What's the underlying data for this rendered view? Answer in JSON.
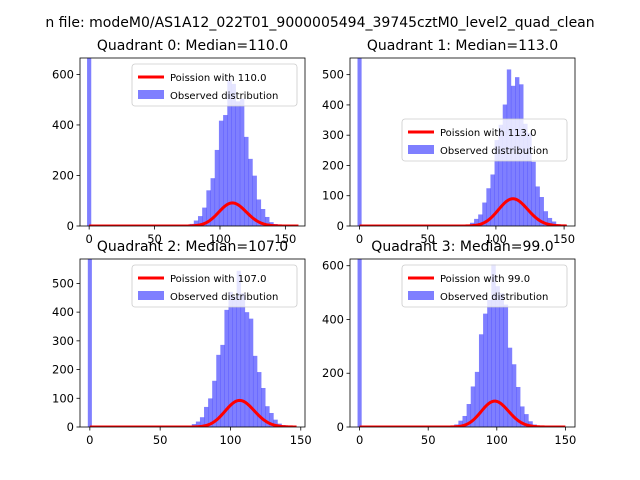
{
  "suptitle": "n file: modeM0/AS1A12_022T01_9000005494_39745cztM0_level2_quad_clean",
  "colors": {
    "hist": "#0000ff",
    "fit": "#ff0000",
    "axes": "#000000",
    "background": "#ffffff"
  },
  "chart_data": [
    {
      "type": "bar",
      "title": "Quadrant 0: Median=110.0",
      "xlim": [
        -7,
        165
      ],
      "ylim": [
        0,
        665
      ],
      "xticks": [
        0,
        50,
        100,
        150
      ],
      "xtick_labels": [
        "0",
        "50",
        "100",
        "150"
      ],
      "yticks": [
        0,
        200,
        400,
        600
      ],
      "ytick_labels": [
        "0",
        "200",
        "400",
        "600"
      ],
      "legend": {
        "position": "upper right",
        "entries": [
          "Poission with 110.0",
          "Observed distribution"
        ]
      },
      "hist": {
        "bin_width": 3.2,
        "zero_bin_height": 665,
        "mean": 110,
        "sd": 11,
        "peak": 560
      },
      "fit": {
        "name": "Poission with 110.0",
        "mu": 110,
        "xmax": 160
      }
    },
    {
      "type": "bar",
      "title": "Quadrant 1: Median=113.0",
      "xlim": [
        -7,
        158
      ],
      "ylim": [
        0,
        555
      ],
      "xticks": [
        0,
        50,
        100,
        150
      ],
      "xtick_labels": [
        "0",
        "50",
        "100",
        "150"
      ],
      "yticks": [
        0,
        100,
        200,
        300,
        400,
        500
      ],
      "ytick_labels": [
        "0",
        "100",
        "200",
        "300",
        "400",
        "500"
      ],
      "legend": {
        "position": "center right",
        "entries": [
          "Poission with 113.0",
          "Observed distribution"
        ]
      },
      "hist": {
        "bin_width": 3.0,
        "zero_bin_height": 555,
        "mean": 113,
        "sd": 11,
        "peak": 500
      },
      "fit": {
        "name": "Poission with 113.0",
        "mu": 113,
        "xmax": 152
      }
    },
    {
      "type": "bar",
      "title": "Quadrant 2: Median=107.0",
      "xlim": [
        -7,
        153
      ],
      "ylim": [
        0,
        585
      ],
      "xticks": [
        0,
        50,
        100,
        150
      ],
      "xtick_labels": [
        "0",
        "50",
        "100",
        "150"
      ],
      "yticks": [
        0,
        100,
        200,
        300,
        400,
        500
      ],
      "ytick_labels": [
        "0",
        "100",
        "200",
        "300",
        "400",
        "500"
      ],
      "legend": {
        "position": "upper right",
        "entries": [
          "Poission with 107.0",
          "Observed distribution"
        ]
      },
      "hist": {
        "bin_width": 2.9,
        "zero_bin_height": 585,
        "mean": 105,
        "sd": 11,
        "peak": 505
      },
      "fit": {
        "name": "Poission with 107.0",
        "mu": 107,
        "xmax": 147
      }
    },
    {
      "type": "bar",
      "title": "Quadrant 3: Median=99.0",
      "xlim": [
        -7,
        157
      ],
      "ylim": [
        0,
        625
      ],
      "xticks": [
        0,
        50,
        100,
        150
      ],
      "xtick_labels": [
        "0",
        "50",
        "100",
        "150"
      ],
      "yticks": [
        0,
        200,
        400,
        600
      ],
      "ytick_labels": [
        "0",
        "200",
        "400",
        "600"
      ],
      "legend": {
        "position": "upper right",
        "entries": [
          "Poission with 99.0",
          "Observed distribution"
        ]
      },
      "hist": {
        "bin_width": 3.0,
        "zero_bin_height": 625,
        "mean": 99,
        "sd": 10,
        "peak": 560
      },
      "fit": {
        "name": "Poission with 99.0",
        "mu": 99,
        "xmax": 150
      }
    }
  ]
}
